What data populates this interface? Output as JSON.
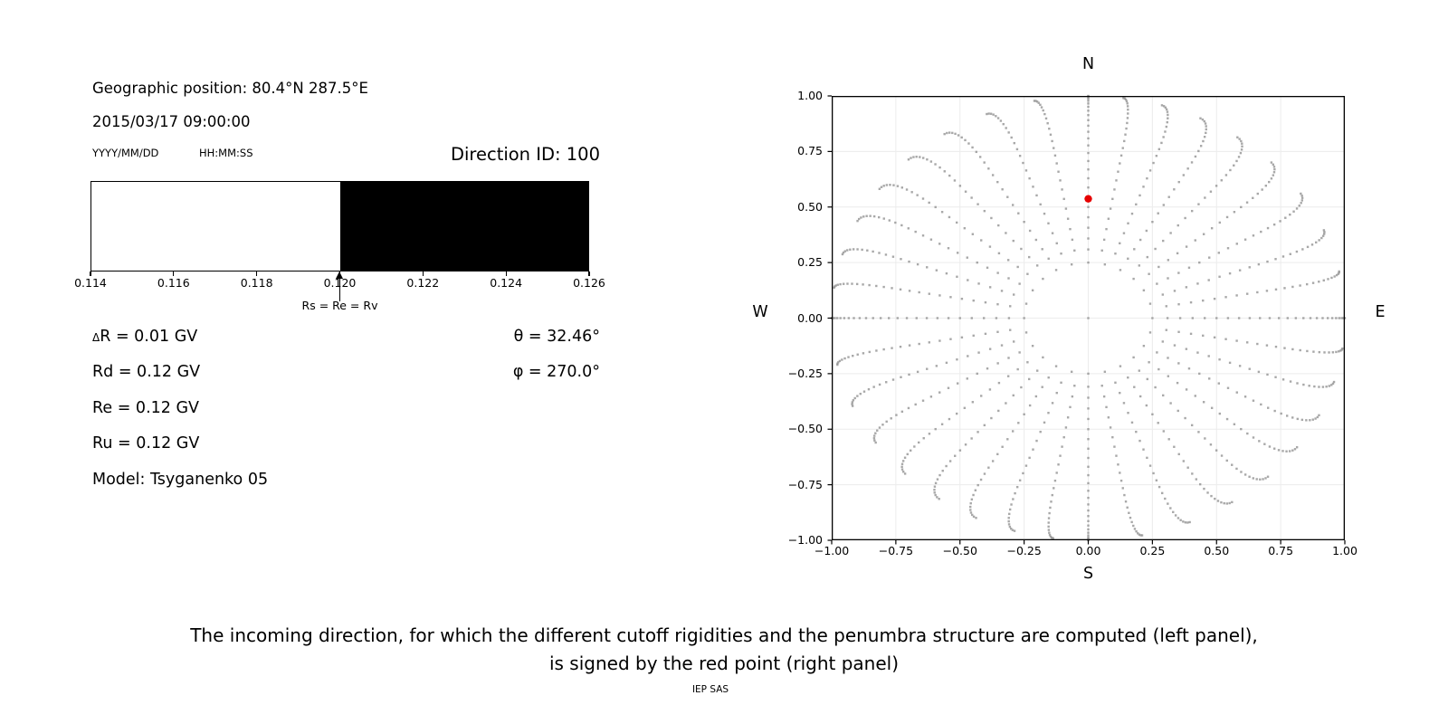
{
  "left_panel": {
    "geographic_position": "Geographic position: 80.4°N 287.5°E",
    "datetime": "2015/03/17 09:00:00",
    "date_format_label": "YYYY/MM/DD",
    "time_format_label": "HH:MM:SS",
    "direction_id": "Direction ID: 100",
    "values": {
      "delta_symbol": "Δ",
      "delta_rest": "R = 0.01 GV",
      "rd": "Rd = 0.12 GV",
      "re": "Re = 0.12 GV",
      "ru": "Ru = 0.12 GV",
      "model": "Model: Tsyganenko 05"
    },
    "angles": {
      "theta": "θ = 32.46°",
      "phi": "φ = 270.0°"
    }
  },
  "caption": {
    "line1": "The incoming direction, for which the different cutoff rigidities and the penumbra structure are computed (left panel),",
    "line2": "is signed by the red point (right panel)",
    "credit": "IEP SAS"
  },
  "chart_data": [
    {
      "id": "penumbra-strip",
      "type": "area",
      "xlim": [
        0.114,
        0.126
      ],
      "xticks": [
        "0.114",
        "0.116",
        "0.118",
        "0.120",
        "0.122",
        "0.124",
        "0.126"
      ],
      "segments": [
        {
          "from": 0.114,
          "to": 0.12,
          "fill": "#ffffff",
          "meaning": "allowed"
        },
        {
          "from": 0.12,
          "to": 0.126,
          "fill": "#000000",
          "meaning": "forbidden"
        }
      ],
      "annotation": {
        "text": "Rs = Re = Rv",
        "x": 0.12,
        "arrow": "up"
      }
    },
    {
      "id": "asymptotic-direction-map",
      "type": "scatter",
      "xlim": [
        -1.0,
        1.0
      ],
      "ylim": [
        -1.0,
        1.0
      ],
      "xticks": [
        "−1.00",
        "−0.75",
        "−0.50",
        "−0.25",
        "0.00",
        "0.25",
        "0.50",
        "0.75",
        "1.00"
      ],
      "yticks": [
        "1.00",
        "0.75",
        "0.50",
        "0.25",
        "0.00",
        "−0.25",
        "−0.50",
        "−0.75",
        "−1.00"
      ],
      "grid": true,
      "grid_step": 0.25,
      "grid_color": "#ececec",
      "compass": {
        "top": "N",
        "bottom": "S",
        "left": "W",
        "right": "E"
      },
      "dot_color": "#8f8f8f",
      "rays": {
        "count": 36,
        "azimuth_step_deg": 10,
        "zenith_from_deg": 90,
        "zenith_to_deg": 18,
        "zenith_step_deg": 3,
        "radius_rule": "sin(zenith)",
        "tip_curl_deg": 4.5
      },
      "inner_ring": {
        "radius": 0.25,
        "dot_count": 24
      },
      "center_dot": {
        "x": 0.0,
        "y": 0.0
      },
      "red_point": {
        "x": 0.0,
        "y": 0.537,
        "color": "#e60000"
      }
    }
  ]
}
